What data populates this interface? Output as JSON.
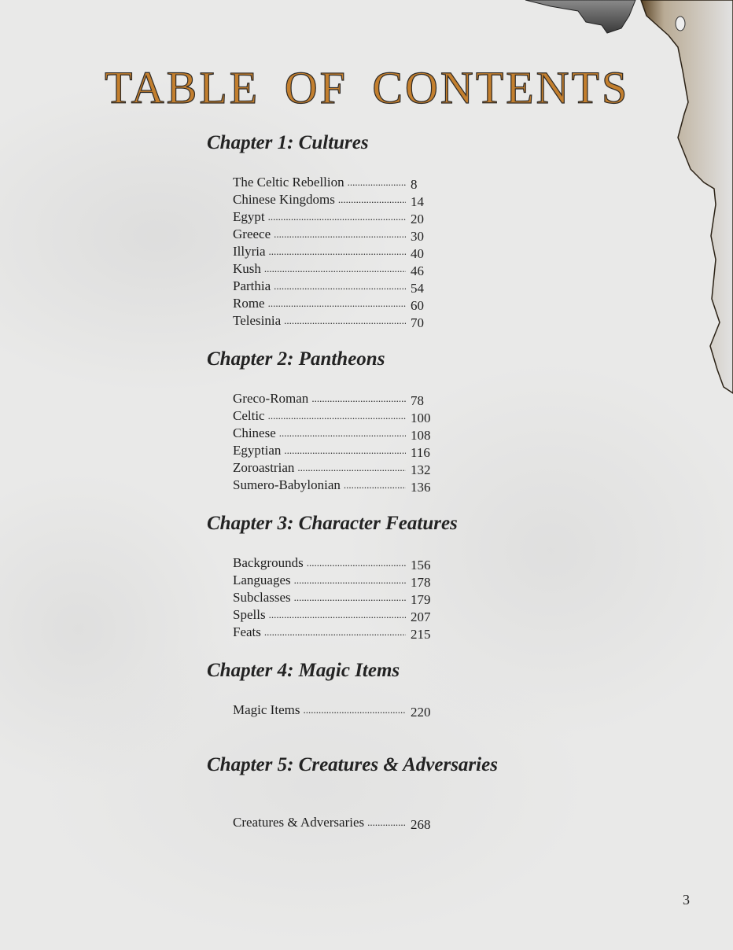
{
  "title": "TABLE OF CONTENTS",
  "page_number": "3",
  "colors": {
    "title": "#c37f2e",
    "text": "#1e1e1e",
    "paper": "#e9e9e8"
  },
  "chapters": [
    {
      "heading": "Chapter 1: Cultures",
      "entries": [
        {
          "name": "The Celtic Rebellion",
          "page": "8"
        },
        {
          "name": "Chinese Kingdoms",
          "page": "14"
        },
        {
          "name": "Egypt",
          "page": "20"
        },
        {
          "name": "Greece",
          "page": "30"
        },
        {
          "name": "Illyria",
          "page": "40"
        },
        {
          "name": "Kush",
          "page": "46"
        },
        {
          "name": "Parthia",
          "page": "54"
        },
        {
          "name": "Rome",
          "page": "60"
        },
        {
          "name": "Telesinia",
          "page": "70"
        }
      ]
    },
    {
      "heading": "Chapter 2: Pantheons",
      "entries": [
        {
          "name": "Greco-Roman",
          "page": "78"
        },
        {
          "name": "Celtic",
          "page": "100"
        },
        {
          "name": "Chinese",
          "page": "108"
        },
        {
          "name": "Egyptian",
          "page": "116"
        },
        {
          "name": "Zoroastrian",
          "page": "132"
        },
        {
          "name": "Sumero-Babylonian",
          "page": "136"
        }
      ]
    },
    {
      "heading": "Chapter 3: Character Features",
      "entries": [
        {
          "name": "Backgrounds",
          "page": "156"
        },
        {
          "name": "Languages",
          "page": "178"
        },
        {
          "name": "Subclasses",
          "page": "179"
        },
        {
          "name": "Spells",
          "page": "207"
        },
        {
          "name": "Feats",
          "page": "215"
        }
      ]
    },
    {
      "heading": "Chapter 4: Magic Items",
      "entries": [
        {
          "name": "Magic Items",
          "page": "220"
        }
      ]
    },
    {
      "heading": "Chapter 5: Creatures & Adversaries",
      "entries": [
        {
          "name": "Creatures & Adversaries",
          "page": "268"
        }
      ]
    }
  ]
}
